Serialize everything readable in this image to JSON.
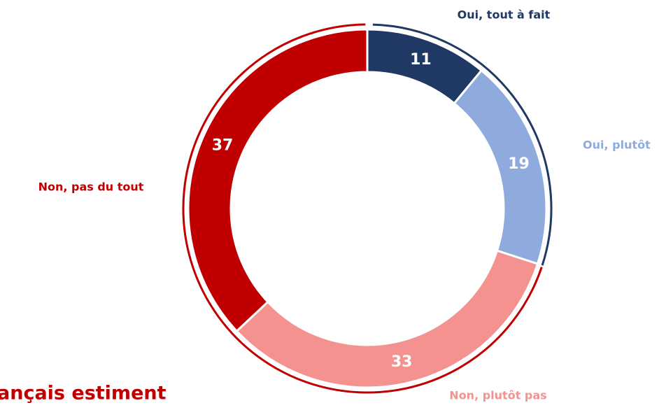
{
  "chart_data": {
    "type": "donut",
    "categories": [
      "Oui, tout à fait",
      "Oui, plutôt",
      "Non, plutôt pas",
      "Non, pas du tout"
    ],
    "values": [
      11,
      19,
      33,
      37
    ],
    "colors": [
      "#1f3864",
      "#8faadc",
      "#f4928f",
      "#c00000"
    ],
    "annotation": "ançais estiment"
  }
}
